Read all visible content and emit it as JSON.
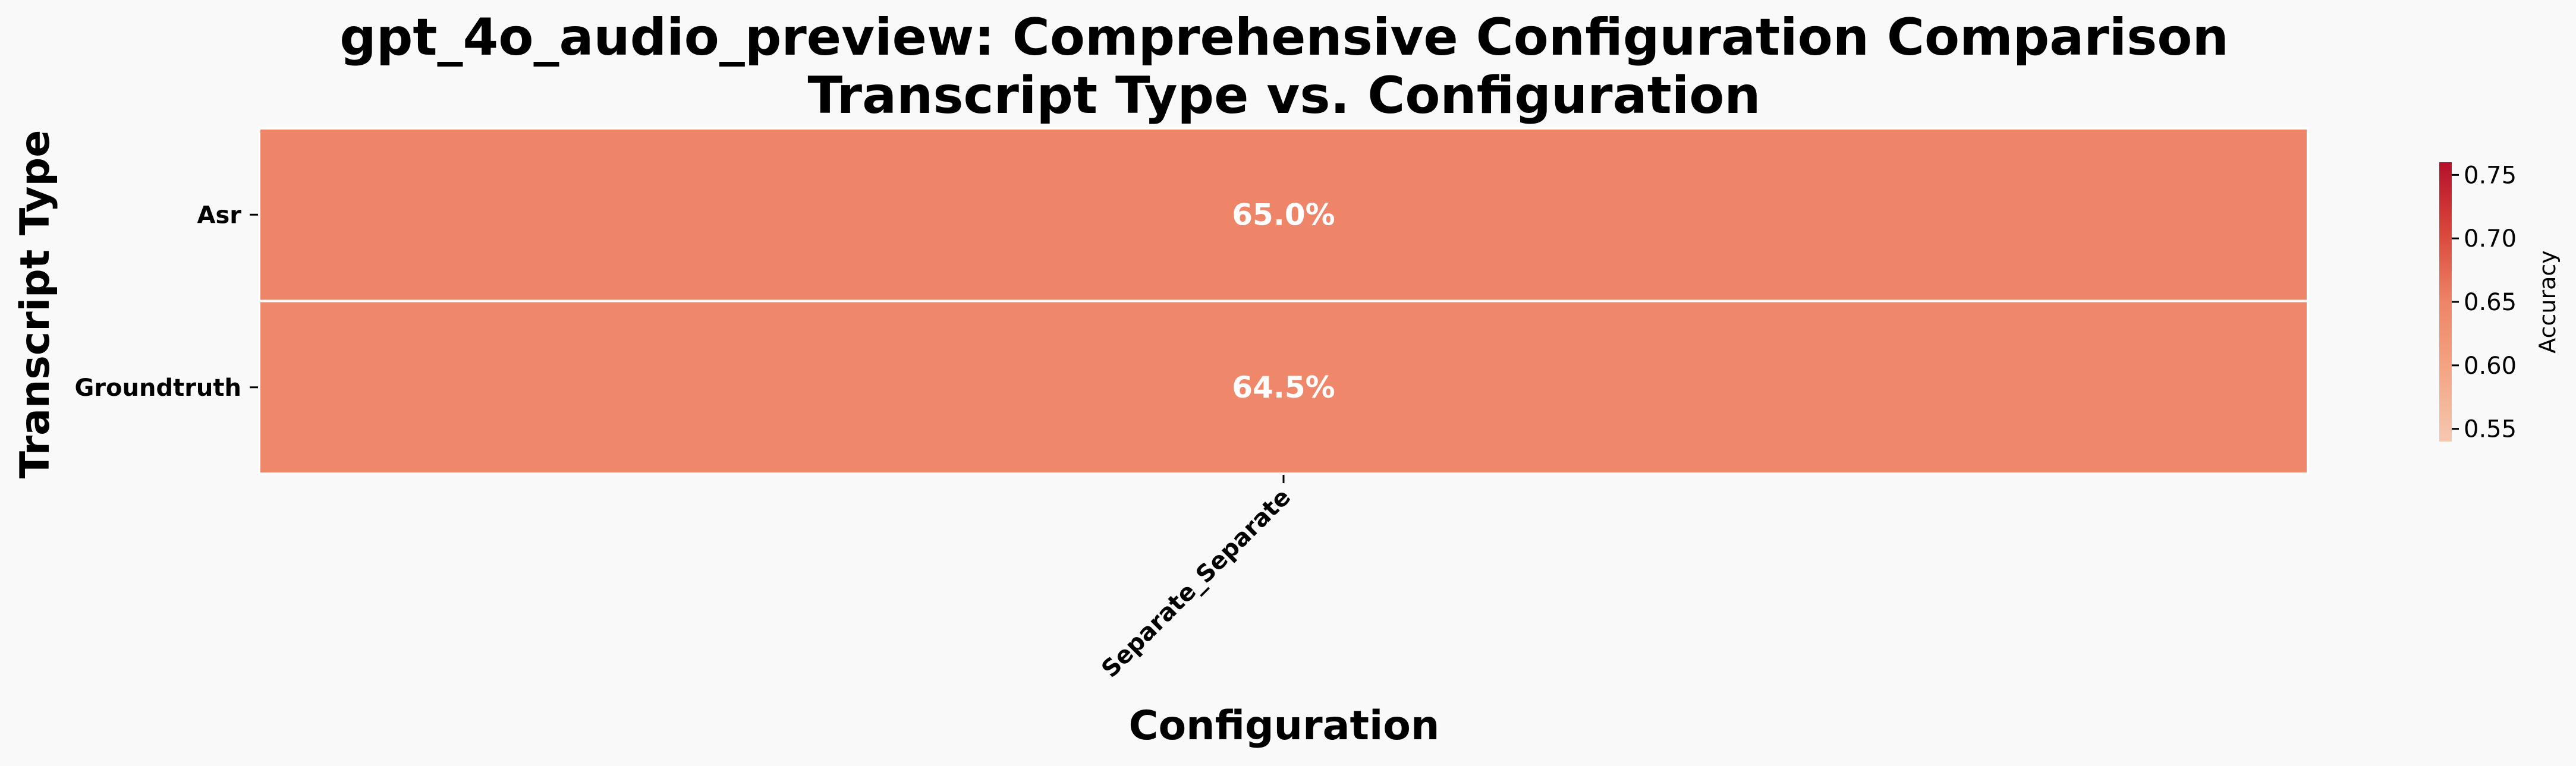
{
  "chart_data": {
    "type": "heatmap",
    "title_lines": [
      "gpt_4o_audio_preview: Comprehensive Configuration Comparison",
      "Transcript Type vs. Configuration"
    ],
    "xlabel": "Configuration",
    "ylabel": "Transcript Type",
    "x_categories": [
      "Separate_Separate"
    ],
    "y_categories": [
      "Asr",
      "Groundtruth"
    ],
    "values": [
      [
        0.65
      ],
      [
        0.645
      ]
    ],
    "cell_labels": [
      [
        "65.0%"
      ],
      [
        "64.5%"
      ]
    ],
    "colorbar": {
      "label": "Accuracy",
      "range": [
        0.54,
        0.76
      ],
      "ticks": [
        0.55,
        0.6,
        0.65,
        0.7,
        0.75
      ],
      "tick_labels": [
        "0.55",
        "0.60",
        "0.65",
        "0.70",
        "0.75"
      ],
      "colormap": "Reds",
      "placement": "right"
    },
    "grid": false
  }
}
